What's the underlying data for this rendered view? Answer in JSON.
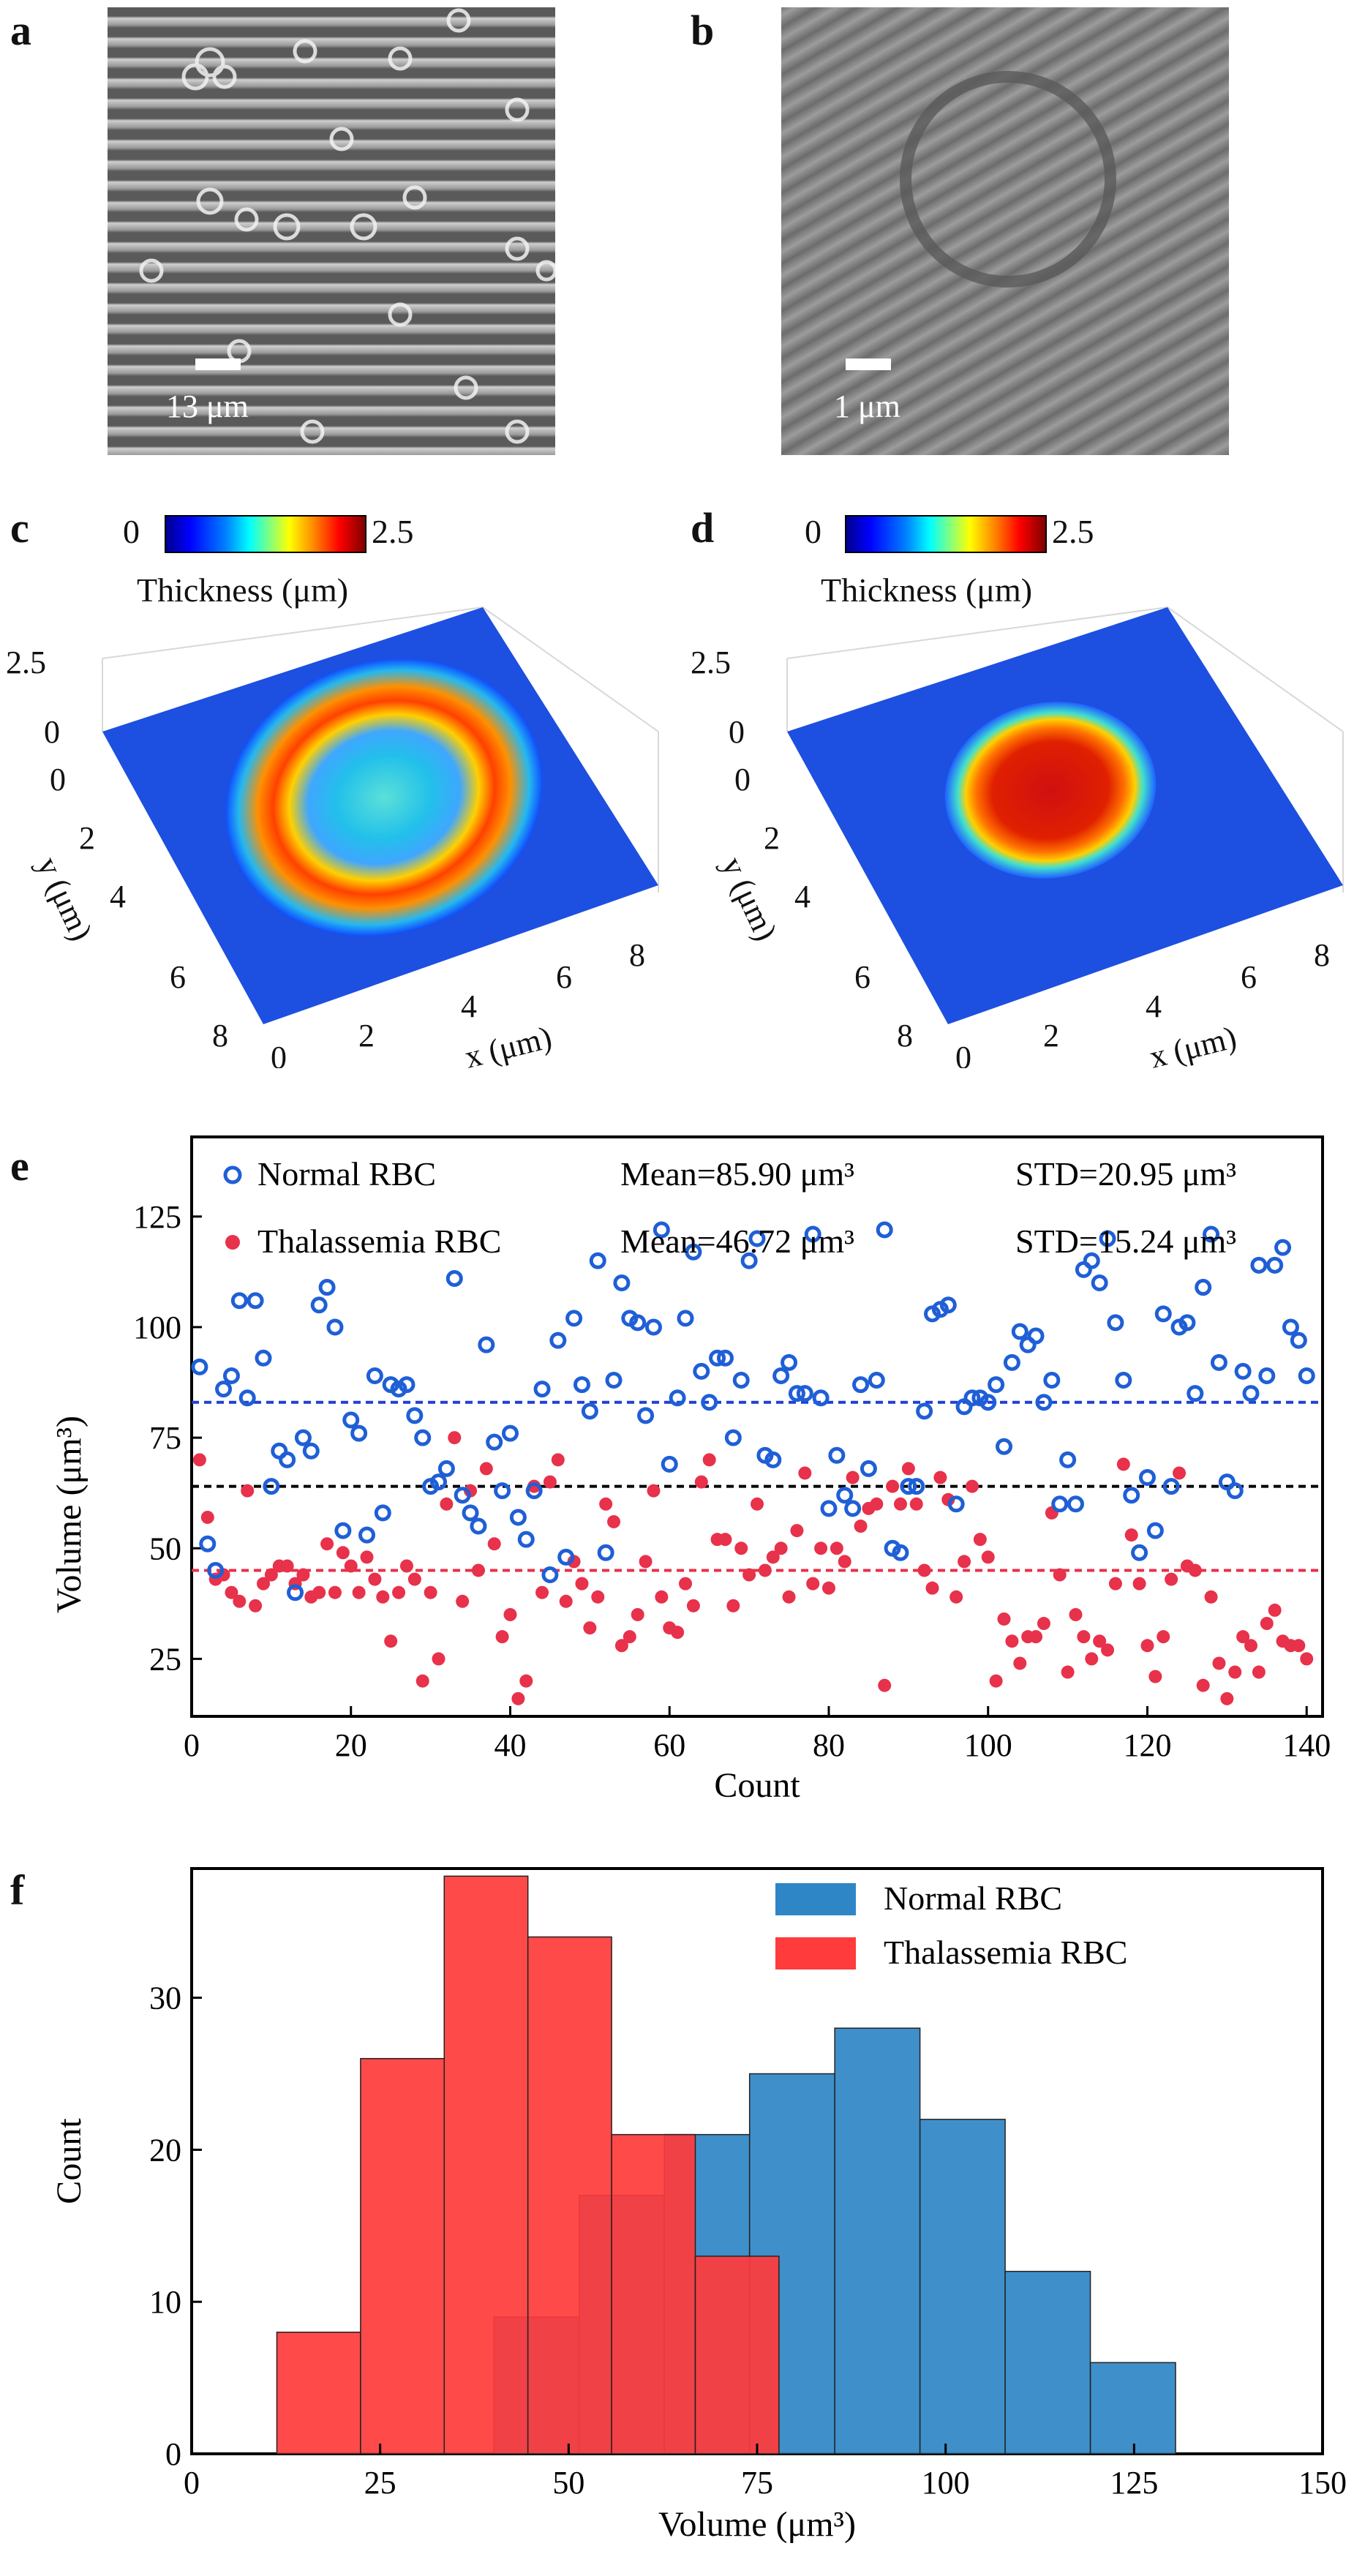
{
  "panels": {
    "a": {
      "label": "a",
      "scale_bar": "13 μm"
    },
    "b": {
      "label": "b",
      "scale_bar": "1 μm"
    },
    "c": {
      "label": "c",
      "colorbar_min": "0",
      "colorbar_max": "2.5",
      "colorbar_label": "Thickness (μm)",
      "z_ticks": [
        "2.5",
        "0"
      ],
      "y_ticks": [
        "0",
        "2",
        "4",
        "6",
        "8"
      ],
      "x_ticks": [
        "0",
        "2",
        "4",
        "6",
        "8"
      ],
      "x_label": "x (μm)",
      "y_label": "y (μm)"
    },
    "d": {
      "label": "d",
      "colorbar_min": "0",
      "colorbar_max": "2.5",
      "colorbar_label": "Thickness (μm)",
      "z_ticks": [
        "2.5",
        "0"
      ],
      "y_ticks": [
        "0",
        "2",
        "4",
        "6",
        "8"
      ],
      "x_ticks": [
        "0",
        "2",
        "4",
        "6",
        "8"
      ],
      "x_label": "x (μm)",
      "y_label": "y (μm)"
    },
    "e": {
      "label": "e"
    },
    "f": {
      "label": "f"
    }
  },
  "colors": {
    "normal": "#1f5fd6",
    "thalassemia": "#e8314a",
    "normal_bar": "#2f86c6",
    "thal_bar": "#ff3b3b"
  },
  "chart_data": [
    {
      "type": "scatter",
      "panel": "e",
      "xlabel": "Count",
      "ylabel": "Volume (μm³)",
      "xlim": [
        0,
        142
      ],
      "ylim": [
        12,
        143
      ],
      "xticks": [
        0,
        20,
        40,
        60,
        80,
        100,
        120,
        140
      ],
      "yticks": [
        25,
        50,
        75,
        100,
        125
      ],
      "legend": [
        {
          "name": "Normal RBC",
          "mean": "Mean=85.90 μm³",
          "std": "STD=20.95 μm³"
        },
        {
          "name": "Thalassemia RBC",
          "mean": "Mean=46.72 μm³",
          "std": "STD=15.24 μm³"
        }
      ],
      "reference_lines": [
        {
          "y": 83,
          "color": "#1f3fd6"
        },
        {
          "y": 64,
          "color": "#000000"
        },
        {
          "y": 45,
          "color": "#e8314a"
        }
      ],
      "series": [
        {
          "name": "Normal RBC",
          "x": [
            1,
            2,
            3,
            4,
            5,
            6,
            7,
            8,
            9,
            10,
            11,
            12,
            13,
            14,
            15,
            16,
            17,
            18,
            19,
            20,
            21,
            22,
            23,
            24,
            25,
            26,
            27,
            28,
            29,
            30,
            31,
            32,
            33,
            34,
            35,
            36,
            37,
            38,
            39,
            40,
            41,
            42,
            43,
            44,
            45,
            46,
            47,
            48,
            49,
            50,
            51,
            52,
            53,
            54,
            55,
            56,
            57,
            58,
            59,
            60,
            61,
            62,
            63,
            64,
            65,
            66,
            67,
            68,
            69,
            70,
            71,
            72,
            73,
            74,
            75,
            76,
            77,
            78,
            79,
            80,
            81,
            82,
            83,
            84,
            85,
            86,
            87,
            88,
            89,
            90,
            91,
            92,
            93,
            94,
            95,
            96,
            97,
            98,
            99,
            100,
            101,
            102,
            103,
            104,
            105,
            106,
            107,
            108,
            109,
            110,
            111,
            112,
            113,
            114,
            115,
            116,
            117,
            118,
            119,
            120,
            121,
            122,
            123,
            124,
            125,
            126,
            127,
            128,
            129,
            130,
            131,
            132,
            133,
            134,
            135,
            136,
            137,
            138,
            139,
            140
          ],
          "y": [
            91,
            51,
            45,
            86,
            89,
            106,
            84,
            106,
            93,
            64,
            72,
            70,
            40,
            75,
            72,
            105,
            109,
            100,
            54,
            79,
            76,
            53,
            89,
            58,
            87,
            86,
            87,
            80,
            75,
            64,
            65,
            68,
            111,
            62,
            58,
            55,
            96,
            74,
            63,
            76,
            57,
            52,
            63,
            86,
            44,
            97,
            48,
            102,
            87,
            81,
            115,
            49,
            88,
            110,
            102,
            101,
            80,
            100,
            122,
            69,
            84,
            102,
            117,
            90,
            83,
            93,
            93,
            75,
            88,
            115,
            120,
            71,
            70,
            89,
            92,
            85,
            85,
            121,
            84,
            59,
            71,
            62,
            59,
            87,
            68,
            88,
            122,
            50,
            49,
            64,
            64,
            81,
            103,
            104,
            105,
            60,
            82,
            84,
            84,
            83,
            87,
            73,
            92,
            99,
            96,
            98,
            83,
            88,
            60,
            70,
            60,
            113,
            115,
            110,
            120,
            101,
            88,
            62,
            49,
            66,
            54,
            103,
            64,
            100,
            101,
            85,
            109,
            121,
            92,
            65,
            63,
            90,
            85,
            114,
            89,
            114,
            118,
            100,
            97,
            89
          ]
        },
        {
          "name": "Thalassemia RBC",
          "x": [
            1,
            2,
            3,
            4,
            5,
            6,
            7,
            8,
            9,
            10,
            11,
            12,
            13,
            14,
            15,
            16,
            17,
            18,
            19,
            20,
            21,
            22,
            23,
            24,
            25,
            26,
            27,
            28,
            29,
            30,
            31,
            32,
            33,
            34,
            35,
            36,
            37,
            38,
            39,
            40,
            41,
            42,
            43,
            44,
            45,
            46,
            47,
            48,
            49,
            50,
            51,
            52,
            53,
            54,
            55,
            56,
            57,
            58,
            59,
            60,
            61,
            62,
            63,
            64,
            65,
            66,
            67,
            68,
            69,
            70,
            71,
            72,
            73,
            74,
            75,
            76,
            77,
            78,
            79,
            80,
            81,
            82,
            83,
            84,
            85,
            86,
            87,
            88,
            89,
            90,
            91,
            92,
            93,
            94,
            95,
            96,
            97,
            98,
            99,
            100,
            101,
            102,
            103,
            104,
            105,
            106,
            107,
            108,
            109,
            110,
            111,
            112,
            113,
            114,
            115,
            116,
            117,
            118,
            119,
            120,
            121,
            122,
            123,
            124,
            125,
            126,
            127,
            128,
            129,
            130,
            131,
            132,
            133,
            134,
            135,
            136,
            137,
            138,
            139,
            140
          ],
          "y": [
            70,
            57,
            43,
            44,
            40,
            38,
            63,
            37,
            42,
            44,
            46,
            46,
            42,
            44,
            39,
            40,
            51,
            40,
            49,
            46,
            40,
            48,
            43,
            39,
            29,
            40,
            46,
            43,
            20,
            40,
            25,
            60,
            75,
            38,
            63,
            45,
            68,
            51,
            30,
            35,
            16,
            20,
            64,
            40,
            65,
            70,
            38,
            47,
            42,
            32,
            39,
            60,
            56,
            28,
            30,
            35,
            47,
            63,
            39,
            32,
            31,
            42,
            37,
            65,
            70,
            52,
            52,
            37,
            50,
            44,
            60,
            45,
            48,
            50,
            39,
            54,
            67,
            42,
            50,
            41,
            50,
            47,
            66,
            55,
            59,
            60,
            19,
            64,
            60,
            68,
            60,
            45,
            41,
            66,
            61,
            39,
            47,
            64,
            52,
            48,
            20,
            34,
            29,
            24,
            30,
            30,
            33,
            58,
            44,
            22,
            35,
            30,
            25,
            29,
            27,
            42,
            69,
            53,
            42,
            28,
            21,
            30,
            43,
            67,
            46,
            45,
            19,
            39,
            24,
            16,
            22,
            30,
            28,
            22,
            33,
            36,
            29,
            28,
            28,
            25
          ]
        }
      ]
    },
    {
      "type": "bar",
      "panel": "f",
      "xlabel": "Volume (μm³)",
      "ylabel": "Count",
      "xlim": [
        0,
        150
      ],
      "ylim": [
        0,
        38.5
      ],
      "xticks": [
        0,
        25,
        50,
        75,
        100,
        125,
        150
      ],
      "yticks": [
        0,
        10,
        20,
        30
      ],
      "legend_position": "top-right",
      "series": [
        {
          "name": "Normal RBC",
          "bin_edges": [
            40.1,
            51.4,
            62.7,
            74.0,
            85.3,
            96.6,
            107.9,
            119.2,
            130.5
          ],
          "values": [
            9,
            17,
            21,
            25,
            28,
            22,
            12,
            6
          ]
        },
        {
          "name": "Thalassemia RBC",
          "bin_edges": [
            11.3,
            22.4,
            33.5,
            44.6,
            55.7,
            66.8,
            77.9
          ],
          "values": [
            8,
            26,
            38,
            34,
            21,
            13
          ]
        }
      ]
    }
  ]
}
